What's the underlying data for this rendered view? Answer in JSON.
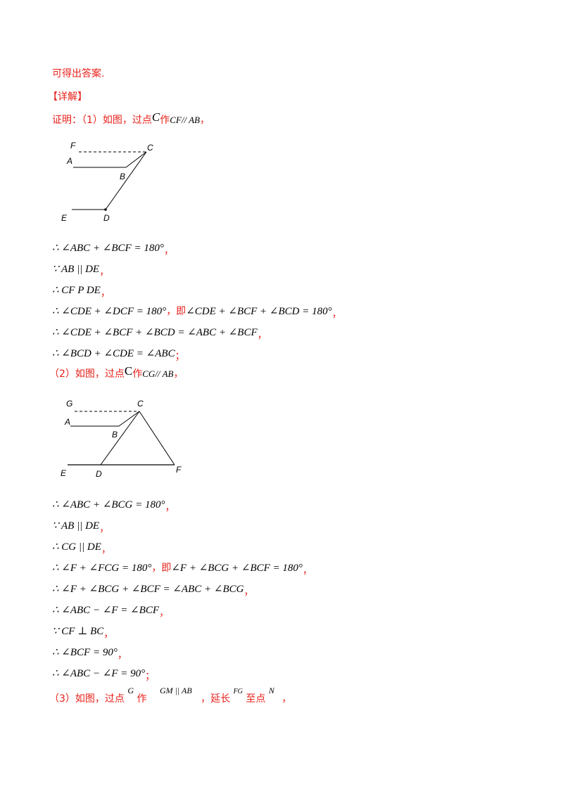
{
  "intro": "可得出答案.",
  "section": "【详解】",
  "part1": {
    "prefix": "证明：（1）如图，过点",
    "point": "C",
    "verb": "作",
    "rel": "CF// AB",
    "tail": "，"
  },
  "figure1": {
    "labels": [
      "F",
      "C",
      "A",
      "B",
      "E",
      "D"
    ]
  },
  "steps1": [
    {
      "math": "∴ ∠ABC + ∠BCF = 180°",
      "tail": "，"
    },
    {
      "math": "∵ AB || DE",
      "tail": "，"
    },
    {
      "math": "∴ CF  P DE",
      "tail": "，"
    },
    {
      "math": "∴ ∠CDE + ∠DCF = 180°",
      "mid": "，即",
      "math2": "∠CDE + ∠BCF + ∠BCD = 180°",
      "tail": "，"
    },
    {
      "math": "∴ ∠CDE + ∠BCF + ∠BCD = ∠ABC + ∠BCF",
      "tail": "，"
    },
    {
      "math": "∴ ∠BCD + ∠CDE = ∠ABC",
      "tail": "；"
    }
  ],
  "part2": {
    "prefix": "（2）如图，过点",
    "point": "C",
    "verb": "作",
    "rel": "CG// AB",
    "tail": "，"
  },
  "figure2": {
    "labels": [
      "G",
      "C",
      "A",
      "B",
      "E",
      "D",
      "F"
    ]
  },
  "steps2": [
    {
      "math": "∴ ∠ABC + ∠BCG = 180°",
      "tail": "，"
    },
    {
      "math": "∵ AB || DE",
      "tail": "，"
    },
    {
      "math": "∴ CG || DE",
      "tail": "，"
    },
    {
      "math": "∴ ∠F + ∠FCG = 180°",
      "mid": "，即",
      "math2": "∠F + ∠BCG + ∠BCF = 180°",
      "tail": "，"
    },
    {
      "math": "∴ ∠F + ∠BCG + ∠BCF = ∠ABC + ∠BCG",
      "tail": "，"
    },
    {
      "math": "∴ ∠ABC − ∠F = ∠BCF",
      "tail": "，"
    },
    {
      "math": "∵ CF ⊥ BC",
      "tail": "，"
    },
    {
      "math": "∴ ∠BCF = 90°",
      "tail": "，"
    },
    {
      "math": "∴ ∠ABC − ∠F = 90°",
      "tail": "；"
    }
  ],
  "part3": {
    "prefix": "（3）如图，过点",
    "point": "G",
    "verb": "作",
    "rel": "GM || AB",
    "mid": "，延长",
    "seg": "FG",
    "verb2": "至点",
    "point2": "N",
    "tail": "，"
  }
}
